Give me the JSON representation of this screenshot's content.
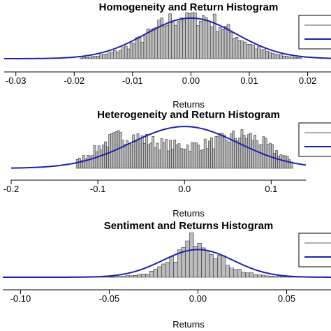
{
  "colors": {
    "bars": "#bdbdbd",
    "bar_outline": "#1a1a1a",
    "normal_curve": "#1f1fb4",
    "axis": "#000000",
    "legend_grey_line": "#b0b0b0"
  },
  "chart_data": [
    {
      "type": "bar",
      "title": "Homogeneity and Return Histogram",
      "xlabel": "Returns",
      "ylabel": "",
      "xlim": [
        -0.032,
        0.024
      ],
      "ylim": [
        0,
        1
      ],
      "xticks": [
        -0.03,
        -0.02,
        -0.01,
        0.0,
        0.01,
        0.02
      ],
      "xtick_labels": [
        "-0.03",
        "-0.02",
        "-0.01",
        "0.00",
        "0.01",
        "0.02"
      ],
      "histogram": {
        "distribution": "unimodal",
        "center": 0.0,
        "spread": 0.0068,
        "range": [
          -0.019,
          0.019
        ],
        "bins": 80,
        "peak": 1.0
      },
      "normal_curve": {
        "mean": 0.0,
        "sd": 0.0078,
        "peak": 0.88
      },
      "legend": {
        "placement": "right",
        "entries": [
          {
            "label": "",
            "style": "grey-line"
          },
          {
            "label": "",
            "style": "blue-line"
          }
        ]
      }
    },
    {
      "type": "bar",
      "title": "Heterogeneity and Return Histogram",
      "xlabel": "Returns",
      "ylabel": "",
      "xlim": [
        -0.2,
        0.14
      ],
      "ylim": [
        0,
        1
      ],
      "xticks": [
        -0.2,
        -0.1,
        0.0,
        0.1
      ],
      "xtick_labels": [
        "-0.2",
        "-0.1",
        "0.0",
        "0.1"
      ],
      "histogram": {
        "distribution": "bimodal",
        "modes": [
          -0.075,
          0.075
        ],
        "range": [
          -0.125,
          0.125
        ],
        "bins": 100,
        "peak": 1.0
      },
      "normal_curve": {
        "mean": 0.0,
        "sd": 0.062,
        "peak": 0.88
      },
      "legend": {
        "placement": "right",
        "entries": [
          {
            "label": "",
            "style": "grey-line"
          },
          {
            "label": "",
            "style": "blue-line"
          }
        ]
      }
    },
    {
      "type": "bar",
      "title": "Sentiment and Returns Histogram",
      "xlabel": "Returns",
      "ylabel": "",
      "xlim": [
        -0.11,
        0.075
      ],
      "ylim": [
        0,
        1
      ],
      "xticks": [
        -0.1,
        -0.05,
        0.0,
        0.05
      ],
      "xtick_labels": [
        "-0.10",
        "-0.05",
        "0.00",
        "0.05"
      ],
      "histogram": {
        "distribution": "peaked",
        "center": 0.0,
        "spread": 0.012,
        "range": [
          -0.07,
          0.065
        ],
        "bins": 60,
        "peak": 1.0
      },
      "normal_curve": {
        "mean": 0.0,
        "sd": 0.02,
        "peak": 0.6
      },
      "legend": {
        "placement": "right",
        "entries": [
          {
            "label": "",
            "style": "grey-line"
          },
          {
            "label": "",
            "style": "blue-line"
          }
        ]
      }
    }
  ]
}
